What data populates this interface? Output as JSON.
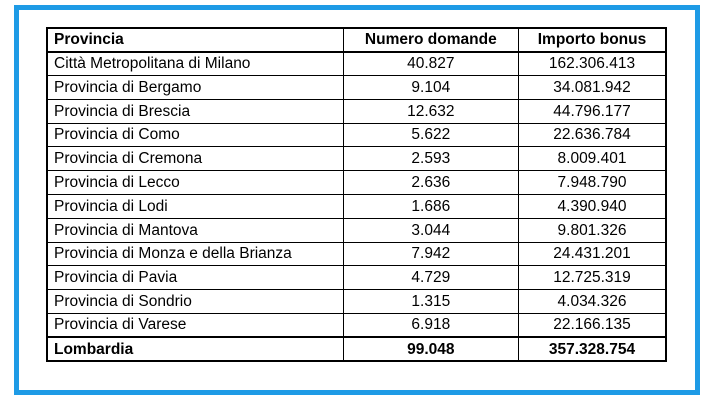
{
  "table": {
    "headers": [
      "Provincia",
      "Numero domande",
      "Importo bonus"
    ],
    "rows": [
      [
        "Città Metropolitana di Milano",
        "40.827",
        "162.306.413"
      ],
      [
        "Provincia di Bergamo",
        "9.104",
        "34.081.942"
      ],
      [
        "Provincia di Brescia",
        "12.632",
        "44.796.177"
      ],
      [
        "Provincia di Como",
        "5.622",
        "22.636.784"
      ],
      [
        "Provincia di Cremona",
        "2.593",
        "8.009.401"
      ],
      [
        "Provincia di Lecco",
        "2.636",
        "7.948.790"
      ],
      [
        "Provincia di Lodi",
        "1.686",
        "4.390.940"
      ],
      [
        "Provincia di Mantova",
        "3.044",
        "9.801.326"
      ],
      [
        "Provincia di Monza e della Brianza",
        "7.942",
        "24.431.201"
      ],
      [
        "Provincia di Pavia",
        "4.729",
        "12.725.319"
      ],
      [
        "Provincia di Sondrio",
        "1.315",
        "4.034.326"
      ],
      [
        "Provincia di Varese",
        "6.918",
        "22.166.135"
      ]
    ],
    "total": [
      "Lombardia",
      "99.048",
      "357.328.754"
    ]
  },
  "colors": {
    "frame_border": "#1e9be6",
    "text": "#000000",
    "background": "#ffffff"
  }
}
